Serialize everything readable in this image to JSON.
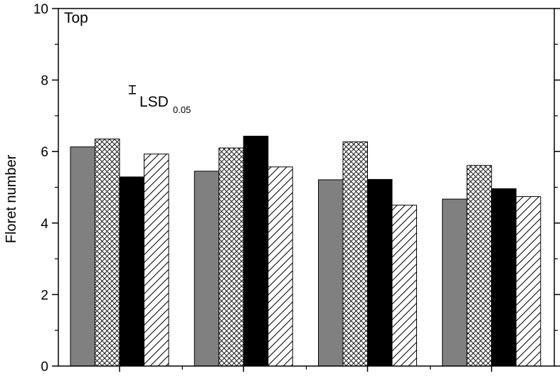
{
  "chart_data": {
    "type": "bar",
    "panel_label": "Top",
    "ylabel": "Floret number",
    "xlabel": "",
    "ylim": [
      0,
      10
    ],
    "yticks": [
      0,
      2,
      4,
      6,
      8,
      10
    ],
    "grid": false,
    "categories": [
      "",
      "",
      "",
      ""
    ],
    "series": [
      {
        "fill": "gray",
        "color": "#808080",
        "values": [
          6.13,
          5.45,
          5.21,
          4.67
        ]
      },
      {
        "fill": "crosshatch",
        "color": "#000000",
        "values": [
          6.35,
          6.1,
          6.27,
          5.61
        ]
      },
      {
        "fill": "black",
        "color": "#000000",
        "values": [
          5.29,
          6.43,
          5.22,
          4.96
        ]
      },
      {
        "fill": "diagonal",
        "color": "#000000",
        "values": [
          5.93,
          5.57,
          4.5,
          4.74
        ]
      }
    ],
    "lsd": {
      "label": "LSD",
      "subscript": "0.05",
      "low": 7.62,
      "high": 7.84
    }
  }
}
